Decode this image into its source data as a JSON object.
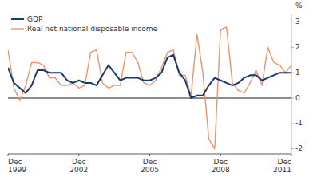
{
  "chart_data": {
    "type": "line",
    "ylabel": "%",
    "categories": [
      "Dec\n1999",
      null,
      null,
      null,
      null,
      null,
      null,
      null,
      null,
      null,
      null,
      null,
      "Dec\n2002",
      null,
      null,
      null,
      null,
      null,
      null,
      null,
      null,
      null,
      null,
      null,
      "Dec\n2005",
      null,
      null,
      null,
      null,
      null,
      null,
      null,
      null,
      null,
      null,
      null,
      "Dec\n2008",
      null,
      null,
      null,
      null,
      null,
      null,
      null,
      null,
      null,
      null,
      null,
      "Dec\n2011"
    ],
    "series": [
      {
        "name": "GDP",
        "color": "#1a3a6b",
        "values": [
          1.2,
          0.6,
          0.4,
          0.2,
          0.5,
          1.1,
          1.1,
          1.0,
          1.0,
          1.0,
          0.7,
          0.6,
          0.7,
          0.6,
          0.6,
          0.5,
          0.9,
          1.3,
          1.0,
          0.7,
          0.8,
          0.8,
          0.8,
          0.7,
          0.7,
          0.8,
          1.0,
          1.6,
          1.7,
          1.0,
          0.7,
          0.0,
          0.1,
          0.1,
          0.5,
          0.8,
          0.7,
          0.6,
          0.5,
          0.6,
          0.8,
          0.9,
          0.9,
          0.7,
          0.8,
          0.9,
          1.0,
          1.0,
          1.0
        ]
      },
      {
        "name": "Real net national disposable income",
        "color": "#e8956d",
        "values": [
          1.9,
          0.4,
          -0.1,
          0.5,
          1.4,
          1.4,
          1.3,
          0.8,
          0.8,
          0.5,
          0.5,
          0.6,
          0.4,
          0.5,
          1.8,
          1.9,
          0.6,
          0.4,
          0.5,
          0.5,
          1.8,
          1.8,
          1.4,
          0.6,
          0.5,
          0.7,
          1.2,
          1.8,
          1.9,
          0.9,
          0.9,
          0.1,
          2.5,
          1.0,
          -1.6,
          -2.0,
          2.7,
          2.8,
          0.6,
          0.3,
          0.2,
          0.6,
          1.1,
          0.5,
          2.0,
          1.4,
          1.3,
          1.0,
          1.3
        ]
      }
    ],
    "ylim": [
      -2.2,
      3.3
    ],
    "yticks": [
      -2,
      -1,
      0,
      1,
      2,
      3
    ],
    "grid": false,
    "legend": "upper left"
  }
}
